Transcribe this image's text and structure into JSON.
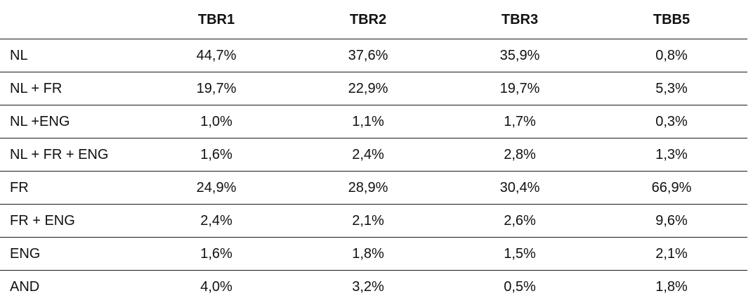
{
  "table": {
    "headers": [
      "",
      "TBR1",
      "TBR2",
      "TBR3",
      "TBB5"
    ],
    "rows": [
      {
        "label": "NL",
        "values": [
          "44,7%",
          "37,6%",
          "35,9%",
          "0,8%"
        ]
      },
      {
        "label": "NL + FR",
        "values": [
          "19,7%",
          "22,9%",
          "19,7%",
          "5,3%"
        ]
      },
      {
        "label": "NL +ENG",
        "values": [
          "1,0%",
          "1,1%",
          "1,7%",
          "0,3%"
        ]
      },
      {
        "label": "NL + FR + ENG",
        "values": [
          "1,6%",
          "2,4%",
          "2,8%",
          "1,3%"
        ]
      },
      {
        "label": "FR",
        "values": [
          "24,9%",
          "28,9%",
          "30,4%",
          "66,9%"
        ]
      },
      {
        "label": "FR + ENG",
        "values": [
          "2,4%",
          "2,1%",
          "2,6%",
          "9,6%"
        ]
      },
      {
        "label": "ENG",
        "values": [
          "1,6%",
          "1,8%",
          "1,5%",
          "2,1%"
        ]
      },
      {
        "label": "AND",
        "values": [
          "4,0%",
          "3,2%",
          "0,5%",
          "1,8%"
        ]
      }
    ]
  }
}
